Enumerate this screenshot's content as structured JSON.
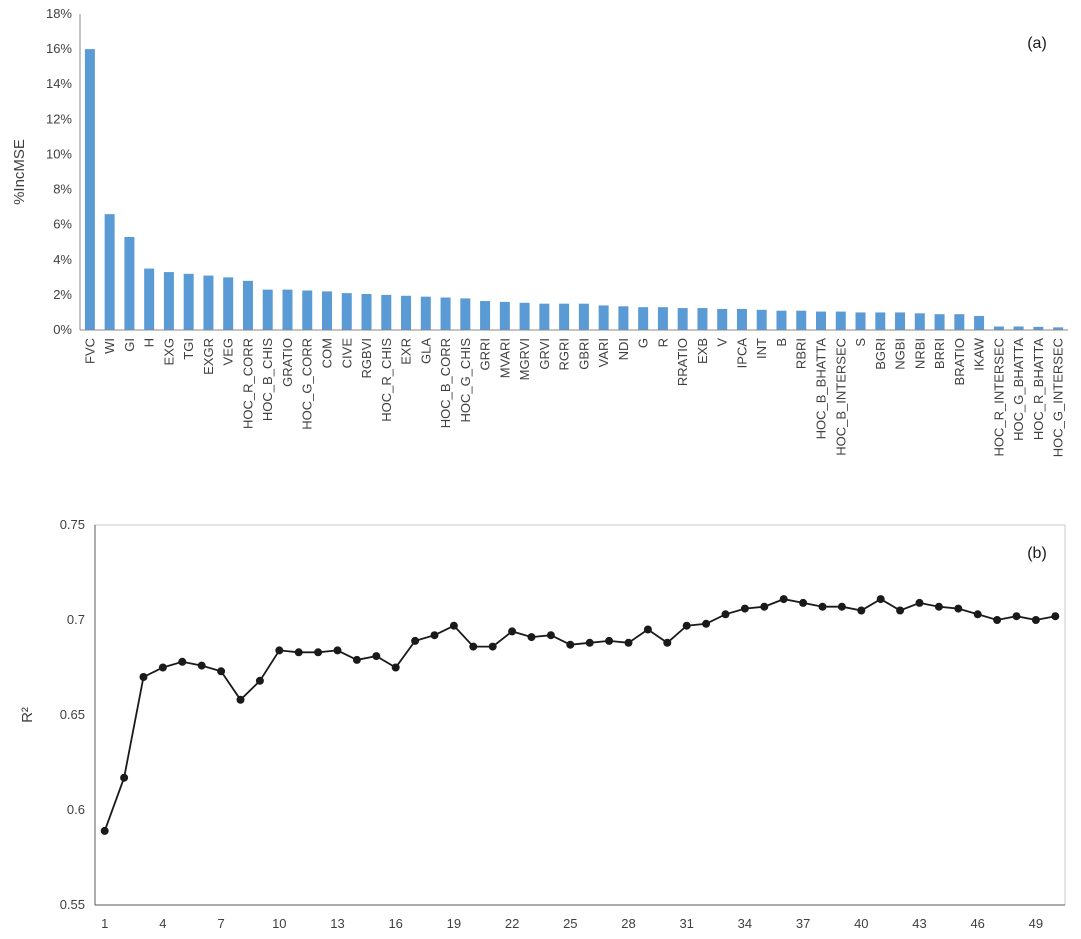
{
  "figure": {
    "panel_a_label": "(a)",
    "panel_b_label": "(b)"
  },
  "chart_data": [
    {
      "type": "bar",
      "title": "",
      "xlabel": "",
      "ylabel": "%IncMSE",
      "ylim": [
        0,
        18
      ],
      "yticks": [
        0,
        2,
        4,
        6,
        8,
        10,
        12,
        14,
        16,
        18
      ],
      "ytick_labels": [
        "0%",
        "2%",
        "4%",
        "6%",
        "8%",
        "10%",
        "12%",
        "14%",
        "16%",
        "18%"
      ],
      "grid": false,
      "legend": "none",
      "bar_color": "#5B9BD5",
      "categories": [
        "FVC",
        "WI",
        "GI",
        "H",
        "EXG",
        "TGI",
        "EXGR",
        "VEG",
        "HOC_R_CORR",
        "HOC_B_CHIS",
        "GRATIO",
        "HOC_G_CORR",
        "COM",
        "CIVE",
        "RGBVI",
        "HOC_R_CHIS",
        "EXR",
        "GLA",
        "HOC_B_CORR",
        "HOC_G_CHIS",
        "GRRI",
        "MVARI",
        "MGRVI",
        "GRVI",
        "RGRI",
        "GBRI",
        "VARI",
        "NDI",
        "G",
        "R",
        "RRATIO",
        "EXB",
        "V",
        "IPCA",
        "INT",
        "B",
        "RBRI",
        "HOC_B_BHATTA",
        "HOC_B_INTERSEC",
        "S",
        "BGRI",
        "NGBI",
        "NRBI",
        "BRRI",
        "BRATIO",
        "IKAW",
        "HOC_R_INTERSEC",
        "HOC_G_BHATTA",
        "HOC_R_BHATTA",
        "HOC_G_INTERSEC"
      ],
      "values": [
        16.0,
        6.6,
        5.3,
        3.5,
        3.3,
        3.2,
        3.1,
        3.0,
        2.8,
        2.3,
        2.3,
        2.25,
        2.2,
        2.1,
        2.05,
        2.0,
        1.95,
        1.9,
        1.85,
        1.8,
        1.65,
        1.6,
        1.55,
        1.5,
        1.5,
        1.5,
        1.4,
        1.35,
        1.3,
        1.3,
        1.25,
        1.25,
        1.2,
        1.2,
        1.15,
        1.1,
        1.1,
        1.05,
        1.05,
        1.0,
        1.0,
        1.0,
        0.95,
        0.9,
        0.9,
        0.8,
        0.2,
        0.2,
        0.18,
        0.15
      ]
    },
    {
      "type": "line",
      "title": "",
      "xlabel": "",
      "ylabel": "R²",
      "ylim": [
        0.55,
        0.75
      ],
      "yticks": [
        0.55,
        0.6,
        0.65,
        0.7,
        0.75
      ],
      "ytick_labels": [
        "0.55",
        "0.6",
        "0.65",
        "0.7",
        "0.75"
      ],
      "xticks": [
        1,
        4,
        7,
        10,
        13,
        16,
        19,
        22,
        25,
        28,
        31,
        34,
        37,
        40,
        43,
        46,
        49
      ],
      "grid": false,
      "legend": "none",
      "line_color": "#1a1a1a",
      "marker": "circle",
      "marker_color": "#1a1a1a",
      "x": [
        1,
        2,
        3,
        4,
        5,
        6,
        7,
        8,
        9,
        10,
        11,
        12,
        13,
        14,
        15,
        16,
        17,
        18,
        19,
        20,
        21,
        22,
        23,
        24,
        25,
        26,
        27,
        28,
        29,
        30,
        31,
        32,
        33,
        34,
        35,
        36,
        37,
        38,
        39,
        40,
        41,
        42,
        43,
        44,
        45,
        46,
        47,
        48,
        49,
        50
      ],
      "values": [
        0.589,
        0.617,
        0.67,
        0.675,
        0.678,
        0.676,
        0.673,
        0.658,
        0.668,
        0.684,
        0.683,
        0.683,
        0.684,
        0.679,
        0.681,
        0.675,
        0.689,
        0.692,
        0.697,
        0.686,
        0.686,
        0.694,
        0.691,
        0.692,
        0.687,
        0.688,
        0.689,
        0.688,
        0.695,
        0.688,
        0.697,
        0.698,
        0.703,
        0.706,
        0.707,
        0.711,
        0.709,
        0.707,
        0.707,
        0.705,
        0.711,
        0.705,
        0.709,
        0.707,
        0.706,
        0.703,
        0.7,
        0.702,
        0.7,
        0.702
      ]
    }
  ]
}
